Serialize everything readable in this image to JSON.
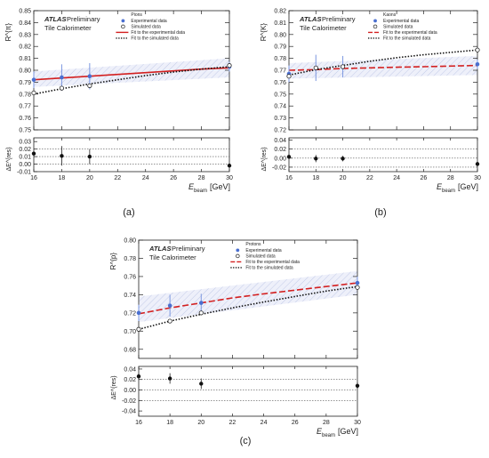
{
  "chart_data": [
    {
      "type": "scatter",
      "panel_label": "(a)",
      "atlas": "ATLAS",
      "atlas_suffix": "Preliminary",
      "subtitle": "Tile Calorimeter",
      "particle": "Pions",
      "ylabel": "R^{π}",
      "residual_ylabel": "ΔE^{res}",
      "xlabel": "E",
      "xlabel_sub": "beam",
      "xlabel_unit": "[GeV]",
      "xlim": [
        16,
        30
      ],
      "ylim": [
        0.75,
        0.85
      ],
      "residual_ylim": [
        -0.01,
        0.035
      ],
      "x_ticks": [
        16,
        18,
        20,
        22,
        24,
        26,
        28,
        30
      ],
      "y_ticks": [
        0.75,
        0.76,
        0.77,
        0.78,
        0.79,
        0.8,
        0.81,
        0.82,
        0.83,
        0.84,
        0.85
      ],
      "residual_ticks": [
        -0.01,
        0,
        0.01,
        0.02,
        0.03
      ],
      "residual_dotted": [
        0,
        0.01,
        0.02
      ],
      "legend": [
        "Experimental data",
        "Simulated data",
        "Fit to the experimental data",
        "Fit to the simulated data"
      ],
      "series": [
        {
          "name": "Experimental data",
          "x": [
            16,
            18,
            20,
            30
          ],
          "y": [
            0.792,
            0.794,
            0.795,
            0.803
          ],
          "err": [
            0.007,
            0.011,
            0.011,
            0.004
          ]
        },
        {
          "name": "Simulated data",
          "x": [
            16,
            18,
            20,
            30
          ],
          "y": [
            0.781,
            0.785,
            0.787,
            0.804
          ]
        },
        {
          "name": "Fit to the experimental data",
          "x": [
            16,
            18,
            20,
            22,
            24,
            26,
            28,
            30
          ],
          "y": [
            0.792,
            0.7935,
            0.795,
            0.7965,
            0.798,
            0.7995,
            0.801,
            0.802
          ]
        },
        {
          "name": "Fit to the simulated data",
          "x": [
            16,
            18,
            20,
            22,
            24,
            26,
            28,
            30
          ],
          "y": [
            0.78,
            0.7845,
            0.7885,
            0.792,
            0.7955,
            0.7985,
            0.801,
            0.803
          ]
        }
      ],
      "band": {
        "x": [
          16,
          30
        ],
        "upper": [
          0.799,
          0.81
        ],
        "lower": [
          0.786,
          0.794
        ]
      },
      "residuals": {
        "x": [
          16,
          18,
          20,
          30
        ],
        "y": [
          0.014,
          0.011,
          0.01,
          -0.002
        ],
        "err": [
          0.003,
          0.013,
          0.01,
          0.002
        ]
      }
    },
    {
      "type": "scatter",
      "panel_label": "(b)",
      "atlas": "ATLAS",
      "atlas_suffix": "Preliminary",
      "subtitle": "Tile Calorimeter",
      "particle": "Kaons",
      "ylabel": "R^{K}",
      "residual_ylabel": "ΔE^{res}",
      "xlabel": "E",
      "xlabel_sub": "beam",
      "xlabel_unit": "[GeV]",
      "xlim": [
        16,
        30
      ],
      "ylim": [
        0.72,
        0.82
      ],
      "residual_ylim": [
        -0.03,
        0.045
      ],
      "x_ticks": [
        16,
        18,
        20,
        22,
        24,
        26,
        28,
        30
      ],
      "y_ticks": [
        0.72,
        0.73,
        0.74,
        0.75,
        0.76,
        0.77,
        0.78,
        0.79,
        0.8,
        0.81,
        0.82
      ],
      "residual_ticks": [
        -0.02,
        0,
        0.02,
        0.04
      ],
      "residual_dotted": [
        -0.02,
        0,
        0.02
      ],
      "legend": [
        "Experimental data",
        "Simulated data",
        "Fit to the experimental data",
        "Fit to the simulated data"
      ],
      "series": [
        {
          "name": "Experimental data",
          "x": [
            16,
            18,
            20,
            30
          ],
          "y": [
            0.767,
            0.772,
            0.773,
            0.775
          ],
          "err": [
            0.007,
            0.011,
            0.009,
            0.004
          ]
        },
        {
          "name": "Simulated data",
          "x": [
            16,
            18,
            20,
            30
          ],
          "y": [
            0.765,
            0.772,
            0.773,
            0.787
          ]
        },
        {
          "name": "Fit to the experimental data",
          "x": [
            16,
            18,
            20,
            22,
            24,
            26,
            28,
            30
          ],
          "y": [
            0.77,
            0.7705,
            0.7715,
            0.772,
            0.7725,
            0.773,
            0.7735,
            0.774
          ]
        },
        {
          "name": "Fit to the simulated data",
          "x": [
            16,
            18,
            20,
            22,
            24,
            26,
            28,
            30
          ],
          "y": [
            0.766,
            0.7705,
            0.774,
            0.7775,
            0.7805,
            0.783,
            0.785,
            0.787
          ]
        }
      ],
      "band": {
        "x": [
          16,
          30
        ],
        "upper": [
          0.776,
          0.782
        ],
        "lower": [
          0.763,
          0.766
        ]
      },
      "residuals": {
        "x": [
          16,
          18,
          20,
          30
        ],
        "y": [
          0.003,
          -0.001,
          -0.001,
          -0.013
        ],
        "err": [
          0.005,
          0.008,
          0.006,
          0.004
        ]
      }
    },
    {
      "type": "scatter",
      "panel_label": "(c)",
      "atlas": "ATLAS",
      "atlas_suffix": "Preliminary",
      "subtitle": "Tile Calorimeter",
      "particle": "Protons",
      "ylabel": "R^{p}",
      "residual_ylabel": "ΔE^{res}",
      "xlabel": "E",
      "xlabel_sub": "beam",
      "xlabel_unit": "[GeV]",
      "xlim": [
        16,
        30
      ],
      "ylim": [
        0.67,
        0.8
      ],
      "residual_ylim": [
        -0.05,
        0.045
      ],
      "x_ticks": [
        16,
        18,
        20,
        22,
        24,
        26,
        28,
        30
      ],
      "y_ticks": [
        0.68,
        0.7,
        0.72,
        0.74,
        0.76,
        0.78,
        0.8
      ],
      "residual_ticks": [
        -0.04,
        -0.02,
        0,
        0.02,
        0.04
      ],
      "residual_dotted": [
        -0.02,
        0,
        0.02
      ],
      "legend": [
        "Experimental data",
        "Simulated data",
        "Fit to the experimental data",
        "Fit to the simulated data"
      ],
      "series": [
        {
          "name": "Experimental data",
          "x": [
            16,
            18,
            20,
            30
          ],
          "y": [
            0.72,
            0.728,
            0.731,
            0.753
          ],
          "err": [
            0.009,
            0.012,
            0.01,
            0.007
          ]
        },
        {
          "name": "Simulated data",
          "x": [
            16,
            18,
            20,
            30
          ],
          "y": [
            0.702,
            0.711,
            0.72,
            0.748
          ]
        },
        {
          "name": "Fit to the experimental data",
          "x": [
            16,
            18,
            20,
            22,
            24,
            26,
            28,
            30
          ],
          "y": [
            0.719,
            0.7255,
            0.731,
            0.7365,
            0.741,
            0.745,
            0.749,
            0.753
          ]
        },
        {
          "name": "Fit to the simulated data",
          "x": [
            16,
            18,
            20,
            22,
            24,
            26,
            28,
            30
          ],
          "y": [
            0.702,
            0.711,
            0.7185,
            0.7255,
            0.732,
            0.738,
            0.744,
            0.749
          ]
        }
      ],
      "band": {
        "x": [
          16,
          30
        ],
        "upper": [
          0.738,
          0.766
        ],
        "lower": [
          0.71,
          0.74
        ]
      },
      "residuals": {
        "x": [
          16,
          18,
          20,
          30
        ],
        "y": [
          0.026,
          0.022,
          0.012,
          0.008
        ],
        "err": [
          0.006,
          0.01,
          0.01,
          0.006
        ]
      }
    }
  ],
  "colors": {
    "experimental_marker": "#4a6fd0",
    "experimental_error": "#7b97e0",
    "fit_experimental": "#d32020",
    "fit_simulated": "#111111",
    "band_fill": "#eef0fa",
    "band_hatch": "#c3cbe8",
    "residual_marker": "#111111"
  }
}
